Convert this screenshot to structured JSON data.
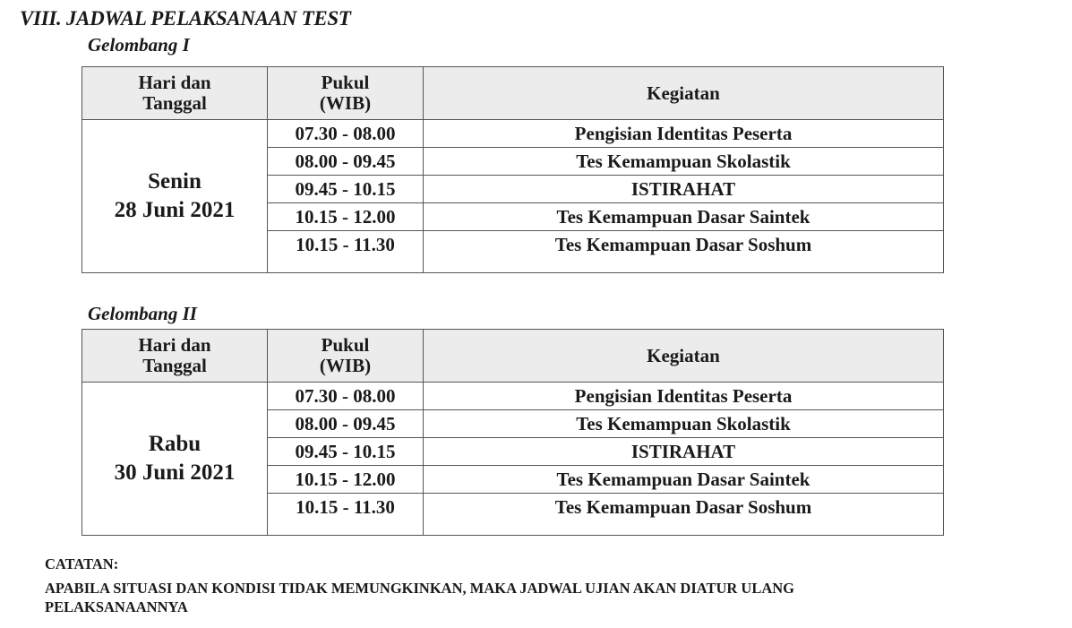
{
  "title": "VIII. JADWAL PELAKSANAAN TEST",
  "headers": {
    "day_line1": "Hari dan",
    "day_line2": "Tanggal",
    "time_line1": "Pukul",
    "time_line2": "(WIB)",
    "activity": "Kegiatan"
  },
  "waves": [
    {
      "label": "Gelombang I",
      "day": "Senin",
      "date": "28 Juni 2021",
      "rows": [
        {
          "time": "07.30 - 08.00",
          "activity": "Pengisian Identitas Peserta"
        },
        {
          "time": "08.00 - 09.45",
          "activity": "Tes Kemampuan Skolastik"
        },
        {
          "time": "09.45 - 10.15",
          "activity": "ISTIRAHAT"
        },
        {
          "time": "10.15 - 12.00",
          "activity": "Tes Kemampuan Dasar Saintek"
        },
        {
          "time": "10.15 - 11.30",
          "activity": "Tes Kemampuan Dasar Soshum"
        }
      ]
    },
    {
      "label": "Gelombang II",
      "day": "Rabu",
      "date": "30 Juni 2021",
      "rows": [
        {
          "time": "07.30 - 08.00",
          "activity": "Pengisian Identitas Peserta"
        },
        {
          "time": "08.00 - 09.45",
          "activity": "Tes Kemampuan Skolastik"
        },
        {
          "time": "09.45 - 10.15",
          "activity": "ISTIRAHAT"
        },
        {
          "time": "10.15 - 12.00",
          "activity": "Tes Kemampuan Dasar Saintek"
        },
        {
          "time": "10.15 - 11.30",
          "activity": "Tes Kemampuan Dasar Soshum"
        }
      ]
    }
  ],
  "note": {
    "label": "CATATAN:",
    "line1": "APABILA SITUASI DAN KONDISI TIDAK MEMUNGKINKAN, MAKA JADWAL UJIAN AKAN DIATUR ULANG",
    "line2": "PELAKSANAANNYA"
  }
}
